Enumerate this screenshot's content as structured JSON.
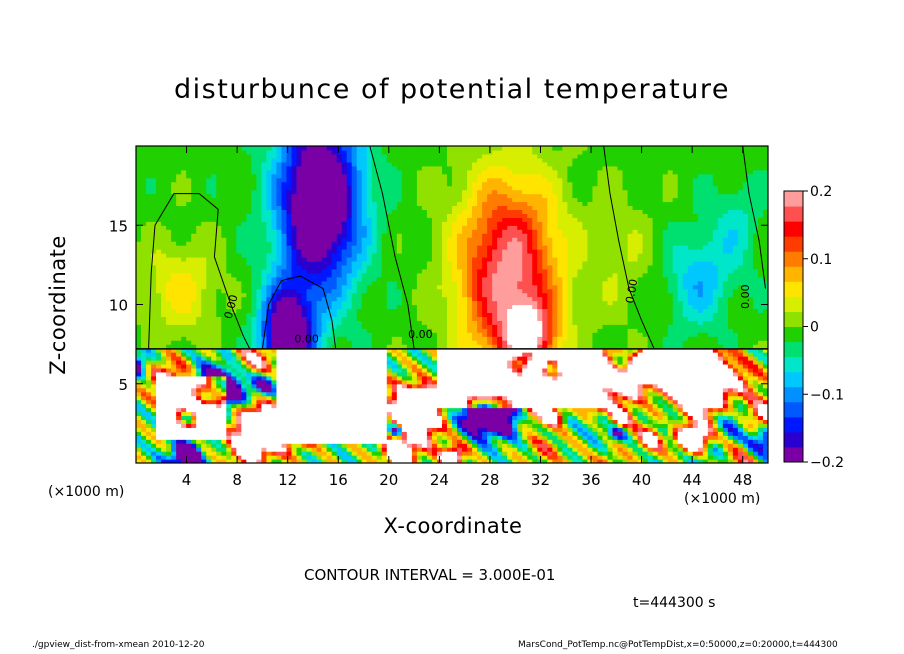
{
  "chart_data": {
    "type": "heatmap",
    "title": "disturbunce of potential temperature",
    "xlabel": "X-coordinate",
    "ylabel": "Z-coordinate",
    "x_unit_left": "(×1000 m)",
    "x_unit_right": "(×1000 m)",
    "xlim": [
      0,
      50
    ],
    "ylim": [
      0,
      20
    ],
    "x_ticks": [
      4,
      8,
      12,
      16,
      20,
      24,
      28,
      32,
      36,
      40,
      44,
      48
    ],
    "y_ticks": [
      5,
      10,
      15
    ],
    "colorbar": {
      "range": [
        -0.2,
        0.2
      ],
      "tick_values": [
        -0.2,
        -0.1,
        0,
        0.1,
        0.2
      ],
      "tick_labels": [
        "−0.2",
        "−0.1",
        "0",
        "0.1",
        "0.2"
      ],
      "colors": [
        "#7a00a6",
        "#2a00d0",
        "#0018ff",
        "#0058ff",
        "#0090ff",
        "#00c8ff",
        "#00e6c8",
        "#00e070",
        "#20d000",
        "#90e000",
        "#d8ee00",
        "#ffe400",
        "#ffb400",
        "#ff7c00",
        "#ff3c00",
        "#ff0000",
        "#ff5050",
        "#ff9c9c"
      ]
    },
    "features": [
      {
        "kind": "cold",
        "x": 14.5,
        "z": 16.5,
        "sx": 3.2,
        "sz": 5.5,
        "amp": -0.26
      },
      {
        "kind": "cold",
        "x": 12.0,
        "z": 8.0,
        "sx": 2.0,
        "sz": 3.0,
        "amp": -0.25
      },
      {
        "kind": "warm",
        "x": 29.5,
        "z": 12.0,
        "sx": 4.0,
        "sz": 6.0,
        "amp": 0.2
      },
      {
        "kind": "warm",
        "x": 31.0,
        "z": 8.0,
        "sx": 2.0,
        "sz": 2.0,
        "amp": 0.16
      },
      {
        "kind": "warm",
        "x": 3.5,
        "z": 11.0,
        "sx": 3.0,
        "sz": 3.0,
        "amp": 0.06
      },
      {
        "kind": "warm",
        "x": 38.5,
        "z": 13.0,
        "sx": 2.5,
        "sz": 4.0,
        "amp": 0.03
      },
      {
        "kind": "cold",
        "x": 44.5,
        "z": 11.5,
        "sx": 2.5,
        "sz": 3.0,
        "amp": -0.07
      },
      {
        "kind": "cold",
        "x": 47.5,
        "z": 15.0,
        "sx": 2.0,
        "sz": 3.0,
        "amp": -0.04
      }
    ],
    "contour_labels": [
      "0.00",
      "0.00",
      "0.00",
      "0.00",
      "0.00"
    ],
    "contour_interval": "CONTOUR INTERVAL = 3.000E-01",
    "time": "t=444300  s"
  },
  "footer": {
    "left": "./gpview_dist-from-xmean  2010-12-20",
    "right": "MarsCond_PotTemp.nc@PotTempDist,x=0:50000,z=0:20000,t=444300"
  }
}
